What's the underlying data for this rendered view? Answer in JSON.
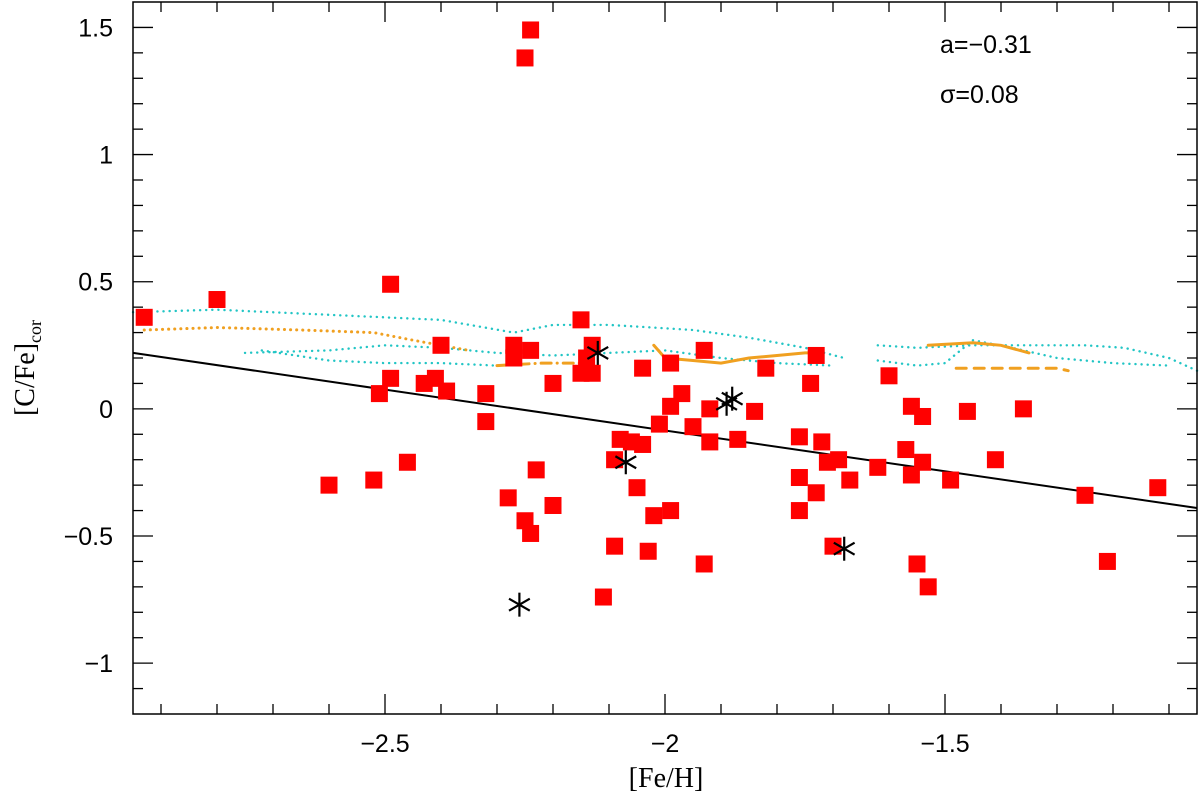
{
  "chart_data": {
    "type": "scatter",
    "xlabel": "[Fe/H]",
    "ylabel": "[C/Fe]",
    "ylabel_sub": "cor",
    "xlim": [
      -2.95,
      -1.05
    ],
    "ylim": [
      -1.2,
      1.6
    ],
    "x_ticks": [
      {
        "value": -2.5,
        "label": "−2.5"
      },
      {
        "value": -2.0,
        "label": "−2"
      },
      {
        "value": -1.5,
        "label": "−1.5"
      }
    ],
    "y_ticks": [
      {
        "value": 1.5,
        "label": "1.5"
      },
      {
        "value": 1.0,
        "label": "1"
      },
      {
        "value": 0.5,
        "label": "0.5"
      },
      {
        "value": 0.0,
        "label": "0"
      },
      {
        "value": -0.5,
        "label": "−0.5"
      },
      {
        "value": -1.0,
        "label": "−1"
      }
    ],
    "annotations": [
      {
        "text": "a=−0.31"
      },
      {
        "text": "σ=0.08"
      }
    ],
    "colors": {
      "squares": "#ff0000",
      "stars": "#000000",
      "fit": "#000000",
      "model_cyan": "#22c5c5",
      "model_orange": "#f0a020"
    },
    "series": [
      {
        "name": "stars (squares)",
        "marker": "square",
        "points": [
          [
            -2.24,
            1.49
          ],
          [
            -2.25,
            1.38
          ],
          [
            -2.8,
            0.43
          ],
          [
            -2.49,
            0.49
          ],
          [
            -2.93,
            0.36
          ],
          [
            -2.15,
            0.35
          ],
          [
            -2.4,
            0.25
          ],
          [
            -2.27,
            0.25
          ],
          [
            -2.27,
            0.2
          ],
          [
            -2.24,
            0.23
          ],
          [
            -2.13,
            0.25
          ],
          [
            -2.14,
            0.2
          ],
          [
            -2.15,
            0.14
          ],
          [
            -2.13,
            0.14
          ],
          [
            -2.49,
            0.12
          ],
          [
            -2.51,
            0.06
          ],
          [
            -2.43,
            0.1
          ],
          [
            -2.41,
            0.12
          ],
          [
            -2.39,
            0.07
          ],
          [
            -2.32,
            0.06
          ],
          [
            -2.2,
            0.1
          ],
          [
            -2.04,
            0.16
          ],
          [
            -1.99,
            0.18
          ],
          [
            -1.93,
            0.23
          ],
          [
            -1.97,
            0.06
          ],
          [
            -1.99,
            0.01
          ],
          [
            -2.01,
            -0.06
          ],
          [
            -2.04,
            -0.14
          ],
          [
            -2.06,
            -0.13
          ],
          [
            -2.08,
            -0.12
          ],
          [
            -2.09,
            -0.2
          ],
          [
            -2.05,
            -0.31
          ],
          [
            -2.02,
            -0.42
          ],
          [
            -1.99,
            -0.4
          ],
          [
            -2.03,
            -0.56
          ],
          [
            -2.09,
            -0.54
          ],
          [
            -2.11,
            -0.74
          ],
          [
            -1.95,
            -0.07
          ],
          [
            -1.92,
            -0.13
          ],
          [
            -1.92,
            0.0
          ],
          [
            -1.87,
            -0.12
          ],
          [
            -1.84,
            -0.01
          ],
          [
            -1.93,
            -0.61
          ],
          [
            -1.82,
            0.16
          ],
          [
            -1.76,
            -0.11
          ],
          [
            -1.72,
            -0.13
          ],
          [
            -1.74,
            0.1
          ],
          [
            -1.73,
            0.21
          ],
          [
            -1.76,
            -0.27
          ],
          [
            -1.71,
            -0.21
          ],
          [
            -1.69,
            -0.2
          ],
          [
            -1.73,
            -0.33
          ],
          [
            -1.67,
            -0.28
          ],
          [
            -1.76,
            -0.4
          ],
          [
            -1.7,
            -0.54
          ],
          [
            -1.62,
            -0.23
          ],
          [
            -1.6,
            0.13
          ],
          [
            -1.56,
            0.01
          ],
          [
            -1.54,
            -0.03
          ],
          [
            -1.57,
            -0.16
          ],
          [
            -1.56,
            -0.26
          ],
          [
            -1.54,
            -0.21
          ],
          [
            -1.55,
            -0.61
          ],
          [
            -1.53,
            -0.7
          ],
          [
            -1.49,
            -0.28
          ],
          [
            -1.46,
            -0.01
          ],
          [
            -1.41,
            -0.2
          ],
          [
            -1.36,
            0.0
          ],
          [
            -1.25,
            -0.34
          ],
          [
            -1.21,
            -0.6
          ],
          [
            -1.12,
            -0.31
          ],
          [
            -2.32,
            -0.05
          ],
          [
            -2.46,
            -0.21
          ],
          [
            -2.52,
            -0.28
          ],
          [
            -2.6,
            -0.3
          ],
          [
            -2.28,
            -0.35
          ],
          [
            -2.23,
            -0.24
          ],
          [
            -2.2,
            -0.38
          ],
          [
            -2.25,
            -0.44
          ],
          [
            -2.24,
            -0.49
          ]
        ]
      },
      {
        "name": "stars (asterisks)",
        "marker": "asterisk",
        "points": [
          [
            -2.12,
            0.22
          ],
          [
            -1.88,
            0.04
          ],
          [
            -1.89,
            0.02
          ],
          [
            -2.07,
            -0.21
          ],
          [
            -1.68,
            -0.55
          ],
          [
            -2.26,
            -0.77
          ]
        ]
      },
      {
        "name": "linear fit",
        "style": "solid",
        "points": [
          [
            -2.95,
            0.22
          ],
          [
            -1.05,
            -0.39
          ]
        ]
      },
      {
        "name": "model cyan track 1",
        "style": "dotted",
        "points": [
          [
            -2.95,
            0.38
          ],
          [
            -2.8,
            0.39
          ],
          [
            -2.6,
            0.37
          ],
          [
            -2.4,
            0.35
          ],
          [
            -2.27,
            0.3
          ],
          [
            -2.2,
            0.33
          ],
          [
            -2.1,
            0.33
          ],
          [
            -1.95,
            0.31
          ],
          [
            -1.85,
            0.28
          ],
          [
            -1.75,
            0.24
          ],
          [
            -1.68,
            0.2
          ]
        ]
      },
      {
        "name": "model cyan track 2",
        "style": "dotted",
        "points": [
          [
            -2.75,
            0.22
          ],
          [
            -2.6,
            0.23
          ],
          [
            -2.5,
            0.25
          ],
          [
            -2.4,
            0.24
          ],
          [
            -2.3,
            0.22
          ],
          [
            -2.2,
            0.21
          ],
          [
            -2.1,
            0.22
          ],
          [
            -2.0,
            0.23
          ],
          [
            -1.9,
            0.2
          ],
          [
            -1.8,
            0.18
          ],
          [
            -1.7,
            0.17
          ]
        ]
      },
      {
        "name": "model cyan track 3",
        "style": "dotted",
        "points": [
          [
            -2.72,
            0.23
          ],
          [
            -2.6,
            0.19
          ],
          [
            -2.5,
            0.18
          ],
          [
            -2.4,
            0.18
          ],
          [
            -2.3,
            0.17
          ]
        ]
      },
      {
        "name": "model cyan track 4",
        "style": "dotted",
        "points": [
          [
            -1.62,
            0.25
          ],
          [
            -1.55,
            0.24
          ],
          [
            -1.45,
            0.25
          ],
          [
            -1.35,
            0.25
          ],
          [
            -1.25,
            0.25
          ],
          [
            -1.18,
            0.24
          ],
          [
            -1.1,
            0.2
          ],
          [
            -1.05,
            0.15
          ]
        ]
      },
      {
        "name": "model cyan track 5",
        "style": "dotted",
        "points": [
          [
            -1.62,
            0.19
          ],
          [
            -1.55,
            0.17
          ],
          [
            -1.5,
            0.18
          ],
          [
            -1.45,
            0.27
          ],
          [
            -1.38,
            0.24
          ],
          [
            -1.3,
            0.2
          ],
          [
            -1.2,
            0.18
          ],
          [
            -1.1,
            0.17
          ]
        ]
      },
      {
        "name": "model orange dotted",
        "style": "dotted",
        "points": [
          [
            -2.93,
            0.31
          ],
          [
            -2.8,
            0.32
          ],
          [
            -2.65,
            0.31
          ],
          [
            -2.52,
            0.3
          ],
          [
            -2.45,
            0.27
          ],
          [
            -2.35,
            0.23
          ]
        ]
      },
      {
        "name": "model orange dashdot",
        "style": "dashdot",
        "points": [
          [
            -2.3,
            0.17
          ],
          [
            -2.22,
            0.18
          ],
          [
            -2.15,
            0.18
          ]
        ]
      },
      {
        "name": "model orange solid",
        "style": "solid",
        "points": [
          [
            -2.02,
            0.25
          ],
          [
            -2.0,
            0.2
          ],
          [
            -1.95,
            0.19
          ],
          [
            -1.9,
            0.18
          ],
          [
            -1.85,
            0.2
          ],
          [
            -1.8,
            0.21
          ],
          [
            -1.75,
            0.22
          ],
          [
            -1.72,
            0.22
          ]
        ]
      },
      {
        "name": "model orange solid 2",
        "style": "solid",
        "points": [
          [
            -1.53,
            0.25
          ],
          [
            -1.45,
            0.26
          ],
          [
            -1.4,
            0.25
          ],
          [
            -1.35,
            0.22
          ]
        ]
      },
      {
        "name": "model orange dashed",
        "style": "dashed",
        "points": [
          [
            -1.48,
            0.16
          ],
          [
            -1.4,
            0.16
          ],
          [
            -1.3,
            0.16
          ],
          [
            -1.28,
            0.15
          ]
        ]
      }
    ]
  }
}
